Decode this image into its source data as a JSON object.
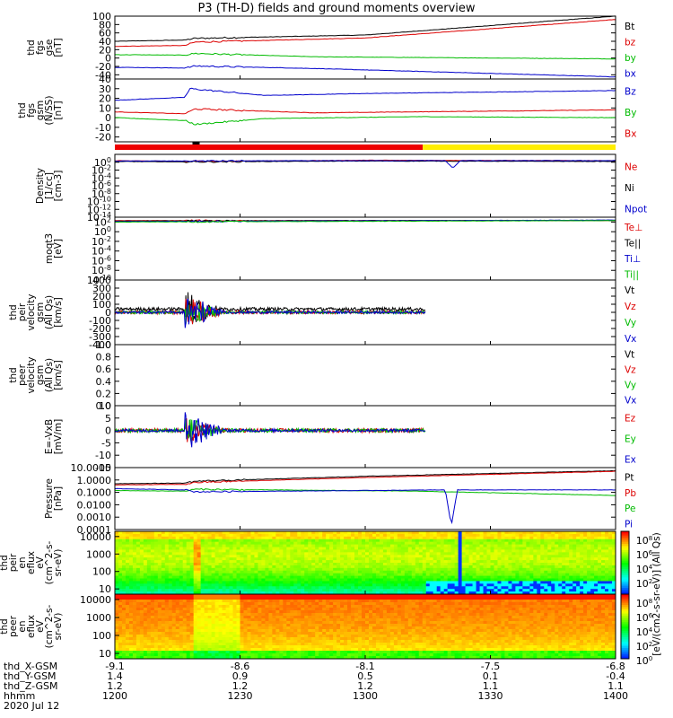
{
  "title": "P3 (TH-D) fields and ground moments overview",
  "chart_data": {
    "type": "line",
    "title": "P3 (TH-D) fields and ground moments overview",
    "date": "2020 Jul 12",
    "time_axis": {
      "range": [
        "12:00",
        "14:00"
      ],
      "tick_times": [
        "1200",
        "1230",
        "1300",
        "1330",
        "1400"
      ],
      "rows": [
        {
          "label": "thd_X-GSM",
          "values": [
            "-9.1",
            "-8.6",
            "-8.1",
            "-7.5",
            "-6.8"
          ]
        },
        {
          "label": "thd_Y-GSM",
          "values": [
            "1.4",
            "0.9",
            "0.5",
            "0.1",
            "-0.4"
          ]
        },
        {
          "label": "thd_Z-GSM",
          "values": [
            "1.2",
            "1.2",
            "1.2",
            "1.1",
            "1.1"
          ]
        },
        {
          "label": "hhmm",
          "values": [
            "1200",
            "1230",
            "1300",
            "1330",
            "1400"
          ]
        }
      ]
    },
    "panels": [
      {
        "ylabel": [
          "thd",
          "fgs",
          "gse",
          "[nT]"
        ],
        "ylim": [
          -50,
          100
        ],
        "yticks": [
          "100",
          "80",
          "60",
          "40",
          "20",
          "0",
          "-20",
          "-40"
        ],
        "series": [
          {
            "name": "Bt",
            "color": "#000000",
            "points": [
              [
                0,
                40
              ],
              [
                0.14,
                43
              ],
              [
                0.16,
                47
              ],
              [
                0.5,
                55
              ],
              [
                1,
                100
              ]
            ]
          },
          {
            "name": "bz",
            "color": "#dd0000",
            "points": [
              [
                0,
                28
              ],
              [
                0.14,
                30
              ],
              [
                0.16,
                38
              ],
              [
                0.5,
                48
              ],
              [
                1,
                92
              ]
            ]
          },
          {
            "name": "by",
            "color": "#00bb00",
            "points": [
              [
                0,
                8
              ],
              [
                0.14,
                7
              ],
              [
                0.16,
                11
              ],
              [
                0.4,
                3
              ],
              [
                1,
                -2
              ]
            ]
          },
          {
            "name": "bx",
            "color": "#0000cc",
            "points": [
              [
                0,
                -22
              ],
              [
                0.14,
                -24
              ],
              [
                0.16,
                -19
              ],
              [
                0.4,
                -25
              ],
              [
                1,
                -45
              ]
            ]
          }
        ]
      },
      {
        "ylabel": [
          "thd",
          "fgs",
          "gsm",
          "(N/SS)",
          "[nT]"
        ],
        "ylim": [
          -25,
          40
        ],
        "yticks": [
          "40",
          "30",
          "20",
          "10",
          "0",
          "-10",
          "-20"
        ],
        "series": [
          {
            "name": "Bz",
            "color": "#0000cc",
            "points": [
              [
                0,
                18
              ],
              [
                0.14,
                21
              ],
              [
                0.15,
                30
              ],
              [
                0.3,
                23
              ],
              [
                0.5,
                25
              ],
              [
                1,
                28
              ]
            ]
          },
          {
            "name": "By",
            "color": "#00bb00",
            "points": [
              [
                0,
                0
              ],
              [
                0.14,
                -3
              ],
              [
                0.16,
                -7
              ],
              [
                0.3,
                -1
              ],
              [
                0.6,
                1
              ],
              [
                1,
                0
              ]
            ]
          },
          {
            "name": "Bx",
            "color": "#dd0000",
            "points": [
              [
                0,
                6
              ],
              [
                0.14,
                4
              ],
              [
                0.16,
                9
              ],
              [
                0.4,
                5
              ],
              [
                1,
                8
              ]
            ]
          }
        ]
      },
      {
        "ylabel": [
          "Density",
          "[1/cc]",
          "[cm-3]"
        ],
        "ylim_log10": [
          -14,
          2
        ],
        "yticks": [
          "10^0",
          "10^-2",
          "10^-4",
          "10^-6",
          "10^-8",
          "10^-10",
          "10^-12",
          "10^-14"
        ],
        "series": [
          {
            "name": "Ne",
            "color": "#dd0000",
            "points": [
              [
                0,
                0.4
              ],
              [
                0.14,
                0.2
              ],
              [
                0.5,
                0.5
              ],
              [
                1,
                0.4
              ]
            ]
          },
          {
            "name": "Ni",
            "color": "#000000",
            "points": [
              [
                0,
                0.2
              ],
              [
                0.14,
                0.1
              ],
              [
                0.5,
                0.3
              ],
              [
                1,
                0.2
              ]
            ]
          },
          {
            "name": "Npot",
            "color": "#0000cc",
            "points": [
              [
                0,
                0.3
              ],
              [
                0.5,
                0.4
              ],
              [
                0.66,
                0.4
              ],
              [
                0.675,
                -1.5
              ],
              [
                0.69,
                0.4
              ],
              [
                1,
                0.4
              ]
            ]
          }
        ]
      },
      {
        "ylabel": [
          "moqt3",
          "[eV]"
        ],
        "ylim_log10": [
          -10,
          3
        ],
        "yticks": [
          "10^2",
          "10^0",
          "10^-2",
          "10^-4",
          "10^-6",
          "10^-8",
          "10^-10"
        ],
        "series": [
          {
            "name": "Te⊥",
            "color": "#dd0000",
            "points": [
              [
                0,
                2.3
              ],
              [
                1,
                2.3
              ]
            ]
          },
          {
            "name": "Te||",
            "color": "#000000",
            "points": [
              [
                0,
                2.2
              ],
              [
                0.5,
                2.3
              ],
              [
                1,
                2.35
              ]
            ]
          },
          {
            "name": "Ti⊥",
            "color": "#0000cc",
            "points": [
              [
                0,
                2.1
              ],
              [
                0.66,
                2.3
              ],
              [
                1,
                2.4
              ]
            ]
          },
          {
            "name": "Ti||",
            "color": "#00bb00",
            "points": [
              [
                0,
                2.0
              ],
              [
                0.66,
                2.2
              ],
              [
                1,
                2.3
              ]
            ]
          }
        ]
      },
      {
        "ylabel": [
          "thd",
          "peir",
          "velocity",
          "gsm",
          "(All Qs)",
          "[km/s]"
        ],
        "ylim": [
          -400,
          400
        ],
        "yticks": [
          "400",
          "300",
          "200",
          "100",
          "0",
          "-100",
          "-200",
          "-300",
          "-400"
        ],
        "data_end": 0.62,
        "series": [
          {
            "name": "Vt",
            "color": "#000000",
            "base": 40,
            "amp": 20,
            "burst": [
              0.14,
              0.22,
              260
            ]
          },
          {
            "name": "Vz",
            "color": "#dd0000",
            "base": 0,
            "amp": 20,
            "burst": [
              0.14,
              0.22,
              200
            ]
          },
          {
            "name": "Vy",
            "color": "#00bb00",
            "base": 0,
            "amp": 18,
            "burst": [
              0.14,
              0.22,
              180
            ]
          },
          {
            "name": "Vx",
            "color": "#0000cc",
            "base": 0,
            "amp": 15,
            "burst": [
              0.14,
              0.22,
              240
            ]
          }
        ]
      },
      {
        "ylabel": [
          "thd",
          "peer",
          "velocity",
          "gsm",
          "(All Qs)",
          "[km/s]"
        ],
        "ylim": [
          0,
          1
        ],
        "yticks": [
          "1.0",
          "0.8",
          "0.6",
          "0.4",
          "0.2",
          "0.0"
        ],
        "series": [
          {
            "name": "Vt",
            "color": "#000000"
          },
          {
            "name": "Vz",
            "color": "#dd0000"
          },
          {
            "name": "Vy",
            "color": "#00bb00"
          },
          {
            "name": "Vx",
            "color": "#0000cc"
          }
        ]
      },
      {
        "ylabel": [
          "E=-VxB",
          "[mV/m]"
        ],
        "ylim": [
          -15,
          10
        ],
        "yticks": [
          "10",
          "5",
          "0",
          "-5",
          "-10",
          "-15"
        ],
        "data_end": 0.62,
        "series": [
          {
            "name": "Ez",
            "color": "#dd0000",
            "base": 0,
            "amp": 0.8,
            "burst": [
              0.14,
              0.22,
              5
            ]
          },
          {
            "name": "Ey",
            "color": "#00bb00",
            "base": 0,
            "amp": 0.8,
            "burst": [
              0.14,
              0.22,
              6
            ]
          },
          {
            "name": "Ex",
            "color": "#0000cc",
            "base": 0,
            "amp": 0.6,
            "burst": [
              0.14,
              0.22,
              8
            ]
          }
        ]
      },
      {
        "ylabel": [
          "Pressure",
          "[nPa]"
        ],
        "ylim_log10": [
          -4,
          1
        ],
        "yticks": [
          "10.0000",
          "1.0000",
          "0.1000",
          "0.0100",
          "0.0010",
          "0.0001"
        ],
        "series": [
          {
            "name": "Pt",
            "color": "#000000",
            "points": [
              [
                0,
                -0.3
              ],
              [
                0.14,
                -0.25
              ],
              [
                0.16,
                -0.1
              ],
              [
                0.5,
                0.3
              ],
              [
                1,
                0.75
              ]
            ]
          },
          {
            "name": "Pb",
            "color": "#dd0000",
            "points": [
              [
                0,
                -0.4
              ],
              [
                0.14,
                -0.35
              ],
              [
                0.16,
                -0.2
              ],
              [
                0.5,
                0.2
              ],
              [
                1,
                0.7
              ]
            ]
          },
          {
            "name": "Pe",
            "color": "#00bb00",
            "points": [
              [
                0,
                -0.85
              ],
              [
                0.14,
                -0.9
              ],
              [
                0.16,
                -0.75
              ],
              [
                0.6,
                -0.9
              ],
              [
                1,
                -1.25
              ]
            ]
          },
          {
            "name": "Pi",
            "color": "#0000cc",
            "points": [
              [
                0,
                -0.7
              ],
              [
                0.14,
                -0.8
              ],
              [
                0.16,
                -0.95
              ],
              [
                0.66,
                -0.8
              ],
              [
                0.672,
                -3.7
              ],
              [
                0.684,
                -0.8
              ],
              [
                1,
                -0.8
              ]
            ]
          }
        ]
      },
      {
        "ylabel": [
          "thd",
          "peir",
          "en",
          "eflux",
          "eV",
          "(cm^2-s-",
          "sr-eV)"
        ],
        "type": "heatmap",
        "ylim_log10": [
          0.7,
          4.3
        ],
        "yticks": [
          "10000",
          "1000",
          "100",
          "10"
        ],
        "colorbar_ticks": [
          "10^8",
          "10^6",
          "10^4",
          "10^2"
        ]
      },
      {
        "ylabel": [
          "thd",
          "peer",
          "en",
          "eflux",
          "eV",
          "(cm^2-s-",
          "sr-eV)"
        ],
        "type": "heatmap",
        "ylim_log10": [
          0.7,
          4.3
        ],
        "yticks": [
          "10000",
          "1000",
          "100",
          "10"
        ],
        "colorbar_ticks": [
          "10^8",
          "10^6",
          "10^4",
          "10^2",
          "10^0"
        ]
      }
    ],
    "colorbar_label": "[eV/(cm2-s-sr-eV)] (All Qs)",
    "colors": {
      "black": "#000000",
      "red": "#dd0000",
      "green": "#00bb00",
      "blue": "#0000cc",
      "bar_red": "#ee0000",
      "bar_yellow": "#ffee00"
    }
  }
}
